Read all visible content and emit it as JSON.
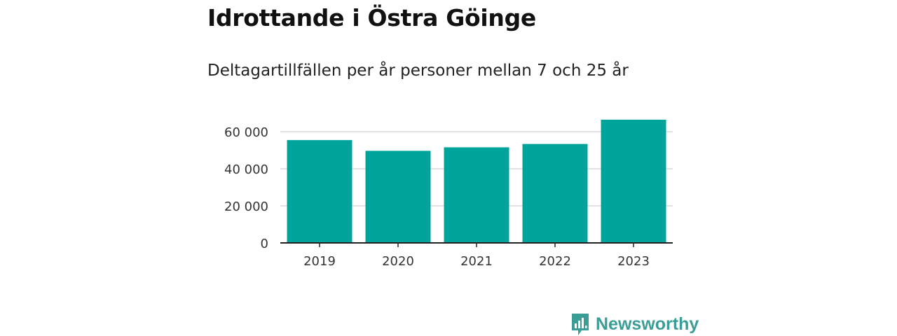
{
  "header": {
    "title": "Idrottande i Östra Göinge",
    "subtitle": "Deltagartillfällen per år personer mellan 7 och 25 år"
  },
  "brand": {
    "name": "Newsworthy",
    "logo_icon": "bar-chart-speech-bubble-icon",
    "color": "#3b9e96"
  },
  "chart_data": {
    "type": "bar",
    "title": "Idrottande i Östra Göinge",
    "subtitle": "Deltagartillfällen per år personer mellan 7 och 25 år",
    "categories": [
      "2019",
      "2020",
      "2021",
      "2022",
      "2023"
    ],
    "values": [
      55500,
      49700,
      51600,
      53400,
      66500
    ],
    "ylim": [
      0,
      66500
    ],
    "yticks": [
      0,
      20000,
      40000,
      60000
    ],
    "ytick_labels": [
      "0",
      "20 000",
      "40 000",
      "60 000"
    ],
    "xlabel": "",
    "ylabel": "",
    "grid": true,
    "bar_color": "#00a39a",
    "grid_color": "#d9d9d9",
    "axis_color": "#222222"
  }
}
